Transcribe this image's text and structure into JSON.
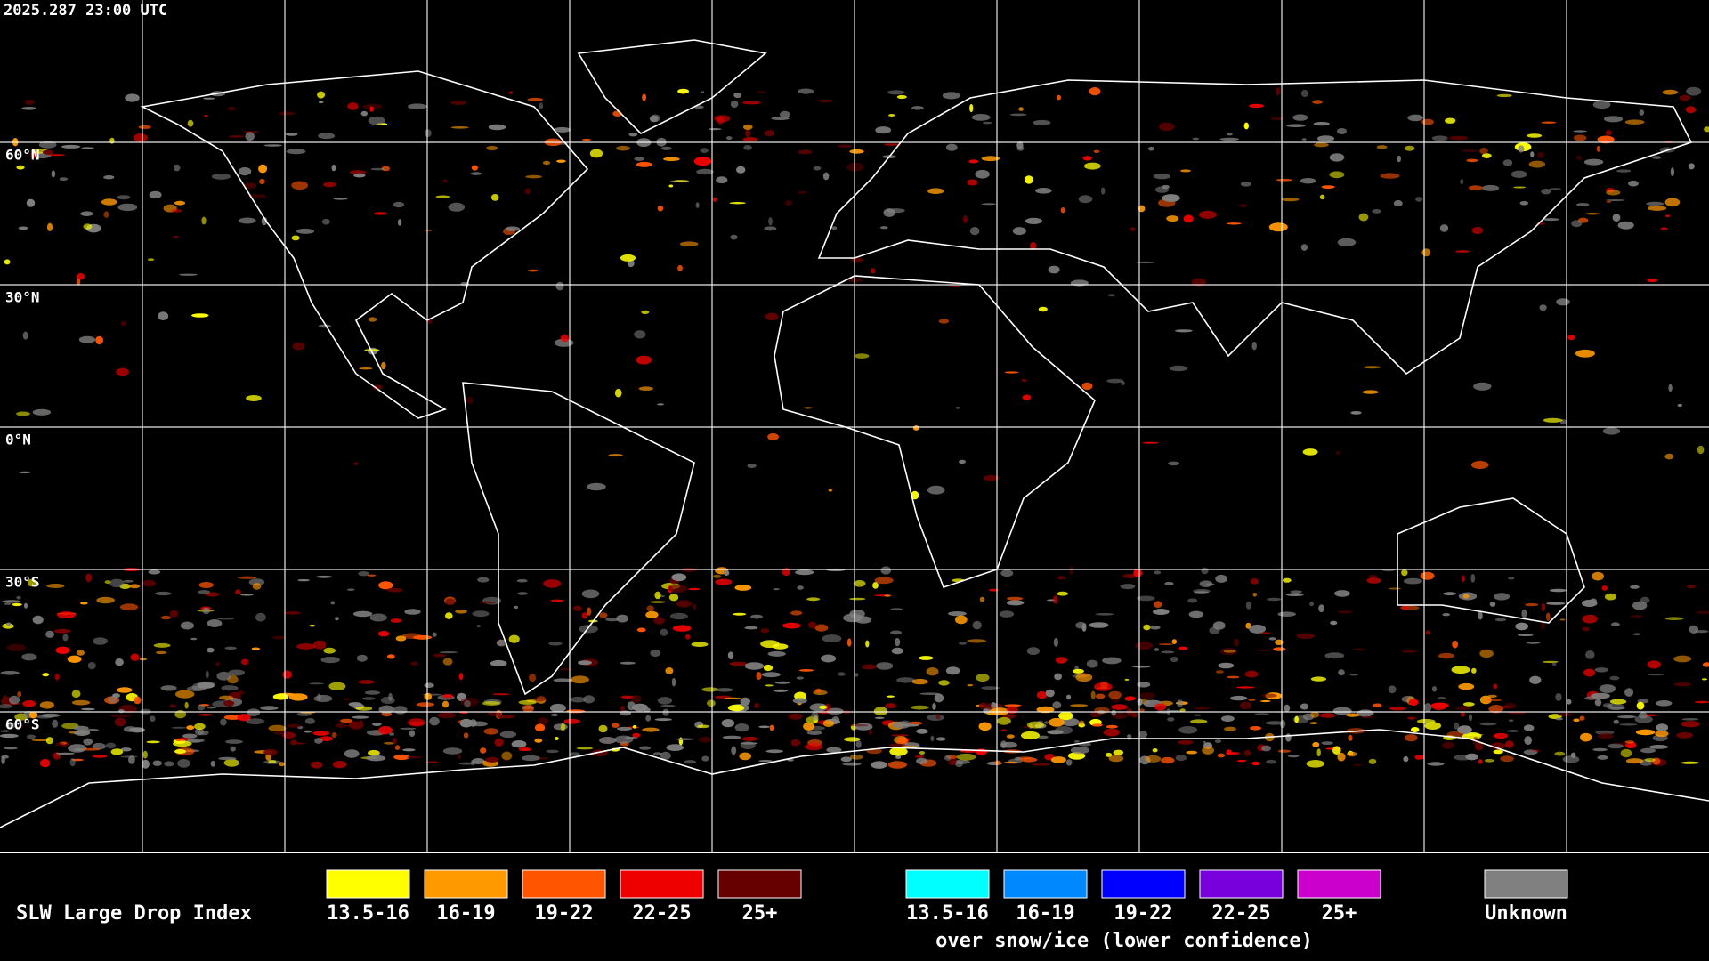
{
  "timestamp": "2025.287 23:00 UTC",
  "latitude_labels": [
    "60°N",
    "30°N",
    "0°N",
    "30°S",
    "60°S"
  ],
  "legend": {
    "title": "SLW Large Drop Index",
    "items": [
      {
        "label": "13.5-16",
        "color": "#ffff00"
      },
      {
        "label": "16-19",
        "color": "#ff9900"
      },
      {
        "label": "19-22",
        "color": "#ff5500"
      },
      {
        "label": "22-25",
        "color": "#ee0000"
      },
      {
        "label": "25+",
        "color": "#660000"
      }
    ],
    "snow_items": [
      {
        "label": "13.5-16",
        "color": "#00ffff"
      },
      {
        "label": "16-19",
        "color": "#0088ff"
      },
      {
        "label": "19-22",
        "color": "#0000ff"
      },
      {
        "label": "22-25",
        "color": "#7700dd"
      },
      {
        "label": "25+",
        "color": "#cc00cc"
      }
    ],
    "snow_caption": "over snow/ice (lower confidence)",
    "unknown": {
      "label": "Unknown",
      "color": "#808080"
    }
  }
}
